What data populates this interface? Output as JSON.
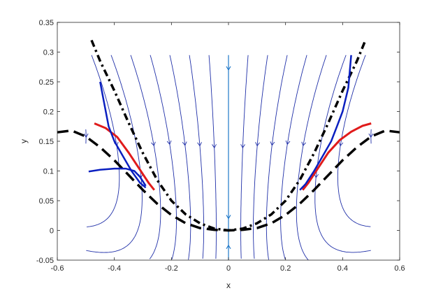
{
  "chart_data": {
    "type": "line",
    "title": "",
    "xlabel": "x",
    "ylabel": "y",
    "xlim": [
      -0.6,
      0.6
    ],
    "ylim": [
      -0.05,
      0.35
    ],
    "x_ticks": [
      "-0.6",
      "-0.4",
      "-0.2",
      "0",
      "0.2",
      "0.4",
      "0.6"
    ],
    "y_ticks": [
      "-0.05",
      "0",
      "0.05",
      "0.1",
      "0.15",
      "0.2",
      "0.25",
      "0.3",
      "0.35"
    ],
    "x_tick_values": [
      -0.6,
      -0.4,
      -0.2,
      0,
      0.2,
      0.4,
      0.6
    ],
    "y_tick_values": [
      -0.05,
      0,
      0.05,
      0.1,
      0.15,
      0.2,
      0.25,
      0.3,
      0.35
    ],
    "grid": false,
    "legend": "none",
    "colors": {
      "streamline": "#1f2fa8",
      "center_line": "#1f78c8",
      "red_curve": "#e01b1b",
      "blue_curve": "#0a1fc0",
      "dashed": "#000000",
      "axes": "#262626"
    },
    "series": [
      {
        "style": "dash-dot black",
        "x": [
          -0.48,
          -0.45,
          -0.4,
          -0.35,
          -0.3,
          -0.25,
          -0.2,
          -0.15,
          -0.1,
          -0.05,
          0.0,
          0.05,
          0.1,
          0.15,
          0.2,
          0.25,
          0.3,
          0.35,
          0.4,
          0.45,
          0.48
        ],
        "y": [
          0.32,
          0.285,
          0.235,
          0.181,
          0.13,
          0.085,
          0.05,
          0.027,
          0.012,
          0.003,
          0.0,
          0.003,
          0.012,
          0.027,
          0.05,
          0.085,
          0.13,
          0.181,
          0.235,
          0.285,
          0.32
        ]
      },
      {
        "style": "long-dash black",
        "x": [
          -0.6,
          -0.55,
          -0.5,
          -0.45,
          -0.4,
          -0.35,
          -0.3,
          -0.25,
          -0.2,
          -0.15,
          -0.1,
          -0.05,
          0.0,
          0.05,
          0.1,
          0.15,
          0.2,
          0.25,
          0.3,
          0.35,
          0.4,
          0.45,
          0.5,
          0.55,
          0.6
        ],
        "y": [
          0.165,
          0.168,
          0.158,
          0.14,
          0.118,
          0.093,
          0.068,
          0.045,
          0.026,
          0.012,
          0.004,
          0.001,
          0.0,
          0.001,
          0.004,
          0.012,
          0.026,
          0.045,
          0.068,
          0.093,
          0.118,
          0.14,
          0.158,
          0.168,
          0.165
        ]
      },
      {
        "style": "solid red",
        "x": [
          -0.47,
          -0.43,
          -0.39,
          -0.35,
          -0.31,
          -0.28,
          -0.26
        ],
        "y": [
          0.18,
          0.172,
          0.157,
          0.131,
          0.102,
          0.08,
          0.068
        ]
      },
      {
        "style": "solid red",
        "x": [
          0.26,
          0.28,
          0.31,
          0.35,
          0.39,
          0.43,
          0.47,
          0.5
        ],
        "y": [
          0.068,
          0.08,
          0.102,
          0.131,
          0.152,
          0.166,
          0.176,
          0.18
        ]
      },
      {
        "style": "solid blue",
        "x": [
          -0.45,
          -0.44,
          -0.43,
          -0.42,
          -0.4,
          -0.37,
          -0.34,
          -0.31,
          -0.29
        ],
        "y": [
          0.25,
          0.225,
          0.2,
          0.175,
          0.15,
          0.125,
          0.1,
          0.08,
          0.072
        ]
      },
      {
        "style": "solid blue",
        "x": [
          -0.49,
          -0.45,
          -0.4,
          -0.36,
          -0.33,
          -0.31,
          -0.29
        ],
        "y": [
          0.099,
          0.102,
          0.104,
          0.104,
          0.1,
          0.09,
          0.075
        ]
      },
      {
        "style": "solid blue",
        "x": [
          0.25,
          0.27,
          0.3,
          0.33,
          0.36,
          0.38,
          0.4,
          0.42,
          0.43
        ],
        "y": [
          0.068,
          0.078,
          0.1,
          0.125,
          0.15,
          0.175,
          0.2,
          0.24,
          0.295
        ]
      }
    ],
    "streamline_field": {
      "description_of_data": "streamlines of a vector field over x in [-0.5, 0.5], y in [-0.05, 0.3]",
      "vertical_center_line_x": 0
    }
  }
}
